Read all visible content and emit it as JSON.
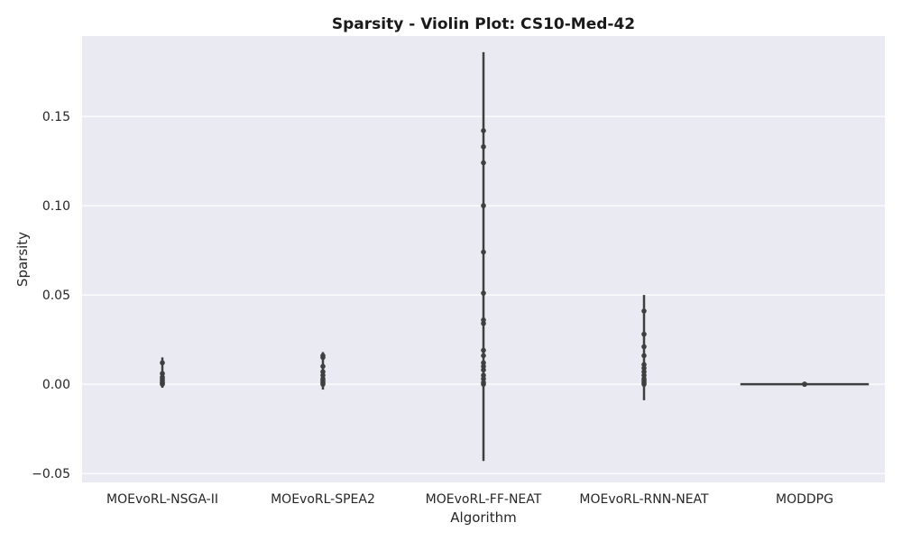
{
  "chart_data": {
    "type": "violin",
    "title": "Sparsity - Violin Plot: CS10-Med-42",
    "xlabel": "Algorithm",
    "ylabel": "Sparsity",
    "ylim": [
      -0.055,
      0.195
    ],
    "yticks": [
      -0.05,
      0.0,
      0.05,
      0.1,
      0.15
    ],
    "ytick_labels": [
      "−0.05",
      "0.00",
      "0.05",
      "0.10",
      "0.15"
    ],
    "grid": true,
    "categories": [
      "MOEvoRL-NSGA-II",
      "MOEvoRL-SPEA2",
      "MOEvoRL-FF-NEAT",
      "MOEvoRL-RNN-NEAT",
      "MODDPG"
    ],
    "series": [
      {
        "category": "MOEvoRL-NSGA-II",
        "range": [
          -0.002,
          0.015
        ],
        "values": [
          0.012,
          0.006,
          0.004,
          0.003,
          0.002,
          0.001,
          0.0005,
          0.0
        ]
      },
      {
        "category": "MOEvoRL-SPEA2",
        "range": [
          -0.003,
          0.018
        ],
        "values": [
          0.016,
          0.015,
          0.01,
          0.007,
          0.005,
          0.003,
          0.002,
          0.001,
          0.0
        ]
      },
      {
        "category": "MOEvoRL-FF-NEAT",
        "range": [
          -0.043,
          0.186
        ],
        "values": [
          0.142,
          0.133,
          0.124,
          0.1,
          0.074,
          0.051,
          0.036,
          0.034,
          0.019,
          0.016,
          0.012,
          0.01,
          0.008,
          0.005,
          0.003,
          0.001,
          0.0
        ]
      },
      {
        "category": "MOEvoRL-RNN-NEAT",
        "range": [
          -0.009,
          0.05
        ],
        "values": [
          0.041,
          0.028,
          0.021,
          0.016,
          0.011,
          0.009,
          0.007,
          0.005,
          0.003,
          0.002,
          0.001,
          0.0
        ]
      },
      {
        "category": "MODDPG",
        "range": [
          0.0,
          0.0
        ],
        "values": [
          0.0,
          0.0,
          0.0
        ]
      }
    ],
    "colors": {
      "background": "#eaeaf2",
      "grid": "#ffffff",
      "marks": "#3f3f3f"
    }
  }
}
